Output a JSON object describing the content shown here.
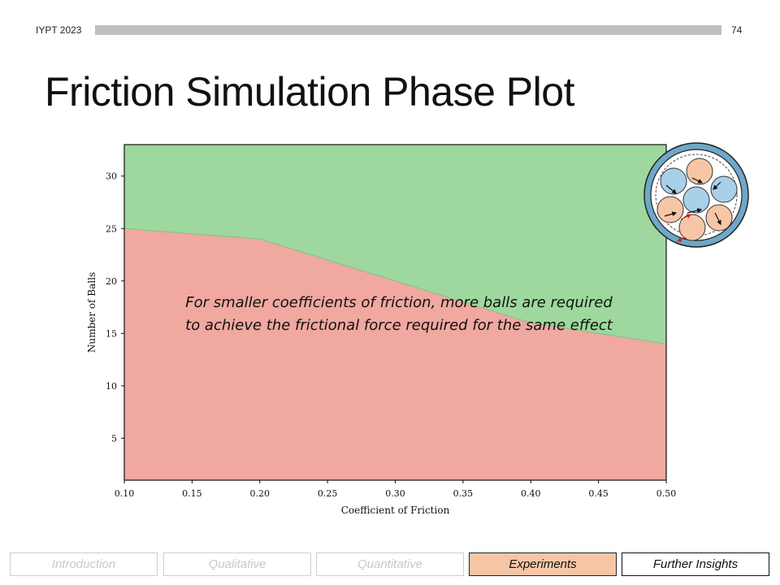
{
  "header": {
    "event": "IYPT 2023",
    "page_number": "74"
  },
  "title": "Friction Simulation Phase Plot",
  "annotation": {
    "line1": "For smaller coefficients of friction, more balls are required",
    "line2": "to achieve the frictional force required for the same effect"
  },
  "chart_data": {
    "type": "area",
    "title": "",
    "xlabel": "Coefficient of Friction",
    "ylabel": "Number of Balls",
    "xlim": [
      0.1,
      0.5
    ],
    "ylim": [
      1,
      33
    ],
    "x": [
      0.1,
      0.2,
      0.3,
      0.4,
      0.5
    ],
    "boundary": [
      25,
      24,
      20,
      16,
      14
    ],
    "xticks": [
      "0.10",
      "0.15",
      "0.20",
      "0.25",
      "0.30",
      "0.35",
      "0.40",
      "0.45",
      "0.50"
    ],
    "yticks": [
      "5",
      "10",
      "15",
      "20",
      "25",
      "30"
    ],
    "colors": {
      "below": "#f0a8a0",
      "above": "#9ed89e",
      "boundary_line": "#8cc08c"
    },
    "grid": false
  },
  "nav": [
    {
      "label": "Introduction",
      "state": "inactive"
    },
    {
      "label": "Qualitative",
      "state": "inactive"
    },
    {
      "label": "Quantitative",
      "state": "inactive"
    },
    {
      "label": "Experiments",
      "state": "active"
    },
    {
      "label": "Further Insights",
      "state": "current"
    }
  ]
}
